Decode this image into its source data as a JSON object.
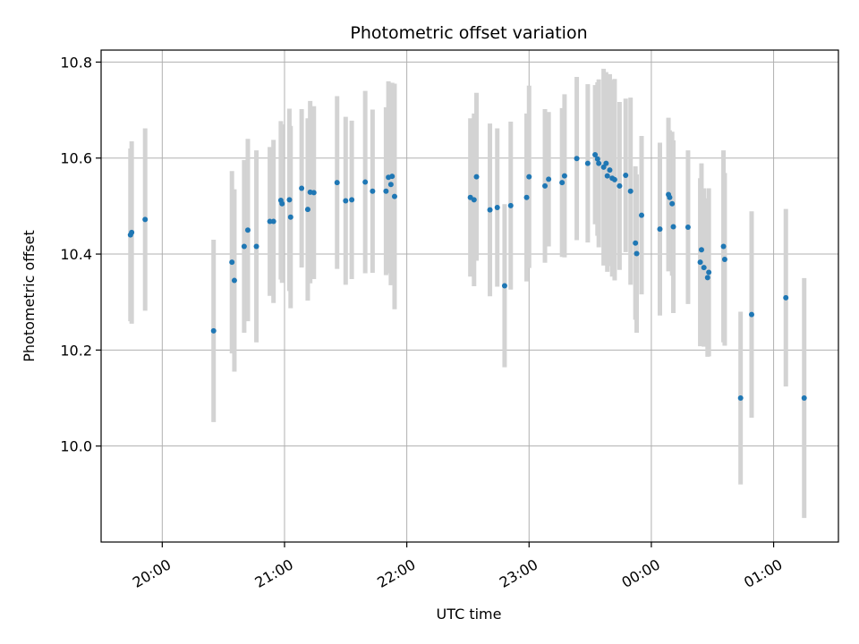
{
  "chart_data": {
    "type": "scatter",
    "title": "Photometric offset variation",
    "xlabel": "UTC time",
    "ylabel": "Photometric offset",
    "x_unit": "hours UTC (values past 24 are after midnight)",
    "xlim": [
      19.5,
      25.53
    ],
    "ylim": [
      9.8,
      10.825
    ],
    "grid": true,
    "colors": {
      "point": "#1f77b4",
      "errorbar": "#d3d3d3",
      "grid": "#b0b0b0"
    },
    "x_ticks": [
      {
        "value": 20,
        "label": "20:00"
      },
      {
        "value": 21,
        "label": "21:00"
      },
      {
        "value": 22,
        "label": "22:00"
      },
      {
        "value": 23,
        "label": "23:00"
      },
      {
        "value": 24,
        "label": "00:00"
      },
      {
        "value": 25,
        "label": "01:00"
      }
    ],
    "y_ticks": [
      {
        "value": 10.0,
        "label": "10.0"
      },
      {
        "value": 10.2,
        "label": "10.2"
      },
      {
        "value": 10.4,
        "label": "10.4"
      },
      {
        "value": 10.6,
        "label": "10.6"
      },
      {
        "value": 10.8,
        "label": "10.8"
      }
    ],
    "series": [
      {
        "points": [
          [
            19.74,
            10.44,
            0.18
          ],
          [
            19.75,
            10.445,
            0.19
          ],
          [
            19.86,
            10.472,
            0.19
          ],
          [
            20.42,
            10.24,
            0.19
          ],
          [
            20.57,
            10.383,
            0.19
          ],
          [
            20.59,
            10.345,
            0.19
          ],
          [
            20.67,
            10.416,
            0.18
          ],
          [
            20.7,
            10.45,
            0.19
          ],
          [
            20.77,
            10.416,
            0.2
          ],
          [
            20.88,
            10.468,
            0.155
          ],
          [
            20.91,
            10.468,
            0.17
          ],
          [
            20.97,
            10.512,
            0.165
          ],
          [
            20.98,
            10.505,
            0.165
          ],
          [
            21.04,
            10.513,
            0.19
          ],
          [
            21.05,
            10.477,
            0.19
          ],
          [
            21.14,
            10.537,
            0.165
          ],
          [
            21.19,
            10.493,
            0.19
          ],
          [
            21.21,
            10.529,
            0.19
          ],
          [
            21.24,
            10.528,
            0.18
          ],
          [
            21.43,
            10.549,
            0.18
          ],
          [
            21.5,
            10.511,
            0.175
          ],
          [
            21.55,
            10.513,
            0.165
          ],
          [
            21.66,
            10.55,
            0.19
          ],
          [
            21.72,
            10.531,
            0.17
          ],
          [
            21.83,
            10.531,
            0.175
          ],
          [
            21.85,
            10.56,
            0.2
          ],
          [
            21.87,
            10.545,
            0.21
          ],
          [
            21.88,
            10.562,
            0.195
          ],
          [
            21.9,
            10.52,
            0.235
          ],
          [
            22.52,
            10.518,
            0.165
          ],
          [
            22.55,
            10.513,
            0.18
          ],
          [
            22.57,
            10.561,
            0.175
          ],
          [
            22.68,
            10.492,
            0.18
          ],
          [
            22.74,
            10.497,
            0.165
          ],
          [
            22.8,
            10.334,
            0.17
          ],
          [
            22.85,
            10.501,
            0.175
          ],
          [
            22.98,
            10.518,
            0.175
          ],
          [
            23.0,
            10.561,
            0.19
          ],
          [
            23.13,
            10.542,
            0.16
          ],
          [
            23.16,
            10.556,
            0.14
          ],
          [
            23.27,
            10.549,
            0.155
          ],
          [
            23.29,
            10.563,
            0.17
          ],
          [
            23.39,
            10.599,
            0.17
          ],
          [
            23.48,
            10.589,
            0.165
          ],
          [
            23.54,
            10.607,
            0.145
          ],
          [
            23.56,
            10.598,
            0.16
          ],
          [
            23.57,
            10.589,
            0.175
          ],
          [
            23.61,
            10.581,
            0.205
          ],
          [
            23.63,
            10.589,
            0.19
          ],
          [
            23.64,
            10.563,
            0.2
          ],
          [
            23.66,
            10.575,
            0.2
          ],
          [
            23.68,
            10.558,
            0.205
          ],
          [
            23.7,
            10.555,
            0.21
          ],
          [
            23.74,
            10.542,
            0.175
          ],
          [
            23.79,
            10.564,
            0.16
          ],
          [
            23.83,
            10.531,
            0.195
          ],
          [
            23.87,
            10.423,
            0.16
          ],
          [
            23.88,
            10.401,
            0.165
          ],
          [
            23.92,
            10.481,
            0.165
          ],
          [
            24.07,
            10.452,
            0.18
          ],
          [
            24.14,
            10.524,
            0.16
          ],
          [
            24.15,
            10.518,
            0.14
          ],
          [
            24.17,
            10.505,
            0.15
          ],
          [
            24.18,
            10.457,
            0.18
          ],
          [
            24.3,
            10.456,
            0.16
          ],
          [
            24.4,
            10.383,
            0.175
          ],
          [
            24.41,
            10.409,
            0.18
          ],
          [
            24.43,
            10.372,
            0.165
          ],
          [
            24.46,
            10.351,
            0.165
          ],
          [
            24.47,
            10.362,
            0.175
          ],
          [
            24.59,
            10.416,
            0.2
          ],
          [
            24.6,
            10.389,
            0.18
          ],
          [
            24.73,
            10.1,
            0.18
          ],
          [
            24.82,
            10.274,
            0.215
          ],
          [
            25.1,
            10.309,
            0.185
          ],
          [
            25.25,
            10.1,
            0.25
          ]
        ]
      }
    ]
  }
}
